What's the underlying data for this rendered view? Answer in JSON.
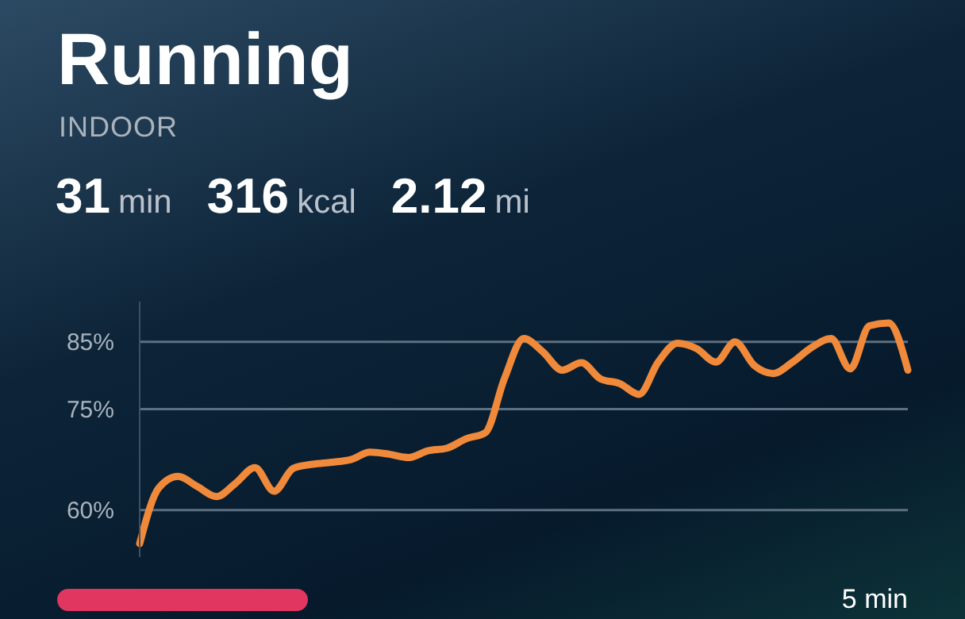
{
  "chart_data": {
    "type": "line",
    "title": "Running",
    "subtitle": "INDOOR",
    "annotations": [
      "31 min",
      "316 kcal",
      "2.12 mi",
      "5 min"
    ],
    "categories": [
      null,
      null,
      null,
      null,
      null,
      null,
      null,
      null,
      null,
      null,
      null,
      null,
      null,
      null,
      null,
      null,
      null,
      null,
      null,
      null,
      null,
      null,
      null,
      null,
      null,
      null,
      null,
      null,
      null,
      null,
      null,
      null,
      null,
      null,
      null,
      null,
      null,
      null,
      null,
      null,
      null
    ],
    "series": [
      {
        "color": "#f08a3a",
        "values": [
          55.0,
          63.3,
          65.0,
          63.5,
          62.0,
          64.0,
          66.3,
          62.8,
          66.2,
          66.8,
          67.1,
          67.5,
          68.6,
          68.3,
          67.8,
          68.8,
          69.2,
          70.6,
          71.5,
          79.6,
          85.5,
          83.5,
          80.8,
          81.9,
          79.5,
          78.8,
          77.2,
          82.0,
          84.8,
          84.0,
          82.0,
          85.0,
          81.5,
          80.3,
          82.0,
          84.2,
          85.5,
          81.0,
          87.4,
          87.8,
          80.8
        ]
      }
    ],
    "yticks": [
      {
        "value": 60,
        "label": "60%"
      },
      {
        "value": 75,
        "label": "75%"
      },
      {
        "value": 85,
        "label": "85%"
      }
    ],
    "ylim": [
      53,
      91
    ],
    "grid": "y",
    "legend": false,
    "tick_labels": "y",
    "marker": "none",
    "line_style": "solid"
  }
}
